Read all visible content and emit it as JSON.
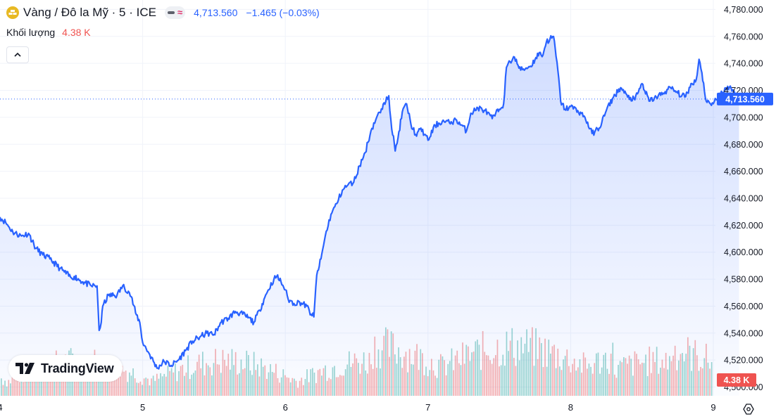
{
  "header": {
    "title": "Vàng / Đô la Mỹ · 5 · ICE",
    "price": "4,713.560",
    "change": "−1.465 (−0.03%)",
    "volume_label": "Khối lượng",
    "volume_value": "4.38 K"
  },
  "colors": {
    "line": "#2962ff",
    "up": "#26a69a",
    "down": "#ef5350",
    "axis_text": "#131722"
  },
  "icons": [
    "gold-coin-icon",
    "line-style-icon",
    "chevron-up-icon",
    "tradingview-logo-icon",
    "settings-icon"
  ],
  "logo": {
    "name": "TradingView"
  },
  "chart_data": {
    "type": "area",
    "title": "Vàng / Đô la Mỹ · 5 · ICE",
    "xlabel": "",
    "ylabel": "",
    "ylim": [
      4493.5,
      4787
    ],
    "x_ticks": [
      "4",
      "5",
      "6",
      "7",
      "8",
      "9"
    ],
    "y_ticks": [
      "4,500.000",
      "4,520.000",
      "4,540.000",
      "4,560.000",
      "4,580.000",
      "4,600.000",
      "4,620.000",
      "4,640.000",
      "4,660.000",
      "4,680.000",
      "4,700.000",
      "4,720.000",
      "4,740.000",
      "4,760.000",
      "4,780.000"
    ],
    "last_price_label": "4,713.560",
    "volume_badge": "4.38 K",
    "grid": true,
    "series": [
      {
        "points": [
          [
            4.0,
            4626
          ],
          [
            4.04,
            4622
          ],
          [
            4.09,
            4615
          ],
          [
            4.15,
            4612
          ],
          [
            4.2,
            4614
          ],
          [
            4.25,
            4603
          ],
          [
            4.3,
            4598
          ],
          [
            4.35,
            4595
          ],
          [
            4.42,
            4588
          ],
          [
            4.5,
            4581
          ],
          [
            4.52,
            4582
          ],
          [
            4.58,
            4578
          ],
          [
            4.64,
            4575
          ],
          [
            4.68,
            4575
          ],
          [
            4.695,
            4542
          ],
          [
            4.71,
            4548
          ],
          [
            4.72,
            4560
          ],
          [
            4.76,
            4568
          ],
          [
            4.82,
            4568
          ],
          [
            4.86,
            4575
          ],
          [
            4.9,
            4571
          ],
          [
            4.92,
            4567
          ],
          [
            4.95,
            4555
          ],
          [
            4.98,
            4548
          ],
          [
            5.0,
            4533
          ],
          [
            5.05,
            4524
          ],
          [
            5.1,
            4514
          ],
          [
            5.15,
            4519
          ],
          [
            5.2,
            4516
          ],
          [
            5.25,
            4520
          ],
          [
            5.3,
            4527
          ],
          [
            5.35,
            4534
          ],
          [
            5.4,
            4537
          ],
          [
            5.45,
            4540
          ],
          [
            5.5,
            4539
          ],
          [
            5.55,
            4548
          ],
          [
            5.6,
            4551
          ],
          [
            5.65,
            4556
          ],
          [
            5.72,
            4553
          ],
          [
            5.78,
            4548
          ],
          [
            5.82,
            4557
          ],
          [
            5.85,
            4565
          ],
          [
            5.88,
            4572
          ],
          [
            5.92,
            4580
          ],
          [
            5.94,
            4582
          ],
          [
            5.97,
            4578
          ],
          [
            6.0,
            4572
          ],
          [
            6.02,
            4565
          ],
          [
            6.06,
            4562
          ],
          [
            6.1,
            4563
          ],
          [
            6.15,
            4560
          ],
          [
            6.18,
            4554
          ],
          [
            6.2,
            4552
          ],
          [
            6.22,
            4583
          ],
          [
            6.25,
            4595
          ],
          [
            6.28,
            4612
          ],
          [
            6.32,
            4628
          ],
          [
            6.36,
            4636
          ],
          [
            6.4,
            4646
          ],
          [
            6.44,
            4650
          ],
          [
            6.48,
            4652
          ],
          [
            6.52,
            4664
          ],
          [
            6.56,
            4674
          ],
          [
            6.6,
            4690
          ],
          [
            6.64,
            4700
          ],
          [
            6.68,
            4706
          ],
          [
            6.71,
            4715
          ],
          [
            6.725,
            4716
          ],
          [
            6.74,
            4698
          ],
          [
            6.77,
            4675
          ],
          [
            6.79,
            4685
          ],
          [
            6.82,
            4704
          ],
          [
            6.85,
            4710
          ],
          [
            6.88,
            4695
          ],
          [
            6.92,
            4686
          ],
          [
            6.95,
            4692
          ],
          [
            7.0,
            4683
          ],
          [
            7.05,
            4694
          ],
          [
            7.1,
            4697
          ],
          [
            7.15,
            4696
          ],
          [
            7.2,
            4698
          ],
          [
            7.27,
            4690
          ],
          [
            7.3,
            4703
          ],
          [
            7.35,
            4707
          ],
          [
            7.4,
            4705
          ],
          [
            7.45,
            4699
          ],
          [
            7.5,
            4706
          ],
          [
            7.53,
            4710
          ],
          [
            7.55,
            4737
          ],
          [
            7.6,
            4745
          ],
          [
            7.65,
            4735
          ],
          [
            7.72,
            4738
          ],
          [
            7.78,
            4748
          ],
          [
            7.8,
            4745
          ],
          [
            7.83,
            4756
          ],
          [
            7.88,
            4760
          ],
          [
            7.91,
            4735
          ],
          [
            7.93,
            4712
          ],
          [
            7.96,
            4706
          ],
          [
            8.0,
            4708
          ],
          [
            8.05,
            4705
          ],
          [
            8.1,
            4700
          ],
          [
            8.15,
            4688
          ],
          [
            8.2,
            4692
          ],
          [
            8.25,
            4705
          ],
          [
            8.3,
            4715
          ],
          [
            8.35,
            4722
          ],
          [
            8.4,
            4715
          ],
          [
            8.45,
            4713
          ],
          [
            8.5,
            4725
          ],
          [
            8.55,
            4712
          ],
          [
            8.6,
            4715
          ],
          [
            8.65,
            4718
          ],
          [
            8.7,
            4722
          ],
          [
            8.75,
            4718
          ],
          [
            8.8,
            4715
          ],
          [
            8.85,
            4725
          ],
          [
            8.88,
            4728
          ],
          [
            8.9,
            4743
          ],
          [
            8.92,
            4733
          ],
          [
            8.95,
            4712
          ],
          [
            8.98,
            4710
          ],
          [
            9.02,
            4713
          ],
          [
            9.05,
            4717
          ],
          [
            9.1,
            4723
          ],
          [
            9.15,
            4718
          ],
          [
            9.18,
            4713.56
          ]
        ]
      }
    ]
  }
}
